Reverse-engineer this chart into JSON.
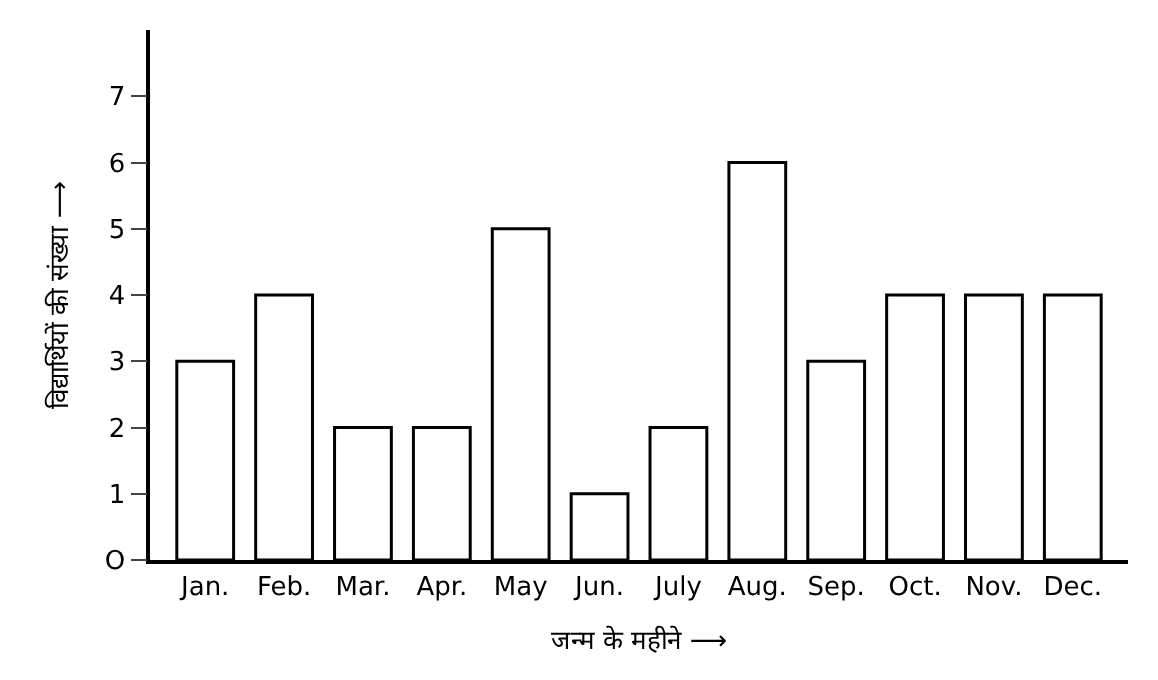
{
  "chart_data": {
    "type": "bar",
    "categories": [
      "Jan.",
      "Feb.",
      "Mar.",
      "Apr.",
      "May",
      "Jun.",
      "July",
      "Aug.",
      "Sep.",
      "Oct.",
      "Nov.",
      "Dec."
    ],
    "values": [
      3,
      4,
      2,
      2,
      5,
      1,
      2,
      6,
      3,
      4,
      4,
      4
    ],
    "color": "#ffffff",
    "xlabel": "जन्म के महीने ⟶",
    "ylabel": "विद्यार्थियों की संख्या ⟶",
    "ylim": [
      0,
      8
    ],
    "yticks": [
      {
        "value": 0,
        "label": "O"
      },
      1,
      2,
      3,
      4,
      5,
      6,
      7
    ],
    "legend": false
  }
}
